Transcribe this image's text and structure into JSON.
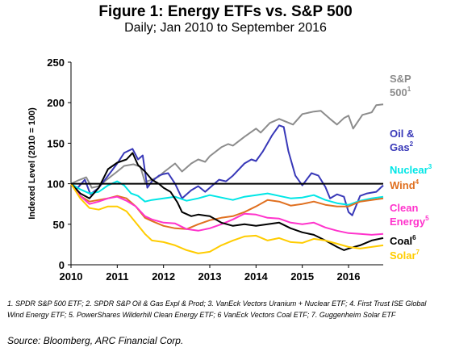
{
  "title": "Figure 1: Energy ETFs vs. S&P 500",
  "subtitle": "Daily; Jan 2010 to September 2016",
  "footnote": "1. SPDR S&P 500 ETF; 2. SPDR S&P Oil & Gas Expl & Prod; 3. VanEck Vectors Uranium + Nuclear ETF; 4. First Trust ISE Global Wind Energy ETF; 5. PowerShares Wilderhill Clean Energy ETF; 6 VanEck Vectors Coal ETF; 7. Guggenheim Solar ETF",
  "source": "Source: Bloomberg, ARC Financial Corp.",
  "chart_data": {
    "type": "line",
    "ylabel": "Indexed Level (2010 = 100)",
    "xlabel": "",
    "xlim": [
      2010.0,
      2016.75
    ],
    "ylim": [
      0,
      250
    ],
    "yticks": [
      0,
      50,
      100,
      150,
      200,
      250
    ],
    "xticks": [
      "2010",
      "2011",
      "2012",
      "2013",
      "2014",
      "2015",
      "2016"
    ],
    "reference_line": 100,
    "grid": false,
    "legend": "direct labels at right end of lines",
    "series": [
      {
        "name": "S&P 500",
        "superscript": "1",
        "color": "#8c8c8c",
        "points": [
          [
            2010.0,
            100
          ],
          [
            2010.15,
            104
          ],
          [
            2010.33,
            108
          ],
          [
            2010.45,
            95
          ],
          [
            2010.6,
            97
          ],
          [
            2010.75,
            104
          ],
          [
            2011.0,
            115
          ],
          [
            2011.15,
            122
          ],
          [
            2011.35,
            124
          ],
          [
            2011.5,
            121
          ],
          [
            2011.6,
            102
          ],
          [
            2011.75,
            105
          ],
          [
            2011.9,
            109
          ],
          [
            2012.0,
            114
          ],
          [
            2012.25,
            125
          ],
          [
            2012.4,
            115
          ],
          [
            2012.6,
            125
          ],
          [
            2012.75,
            130
          ],
          [
            2012.9,
            127
          ],
          [
            2013.0,
            134
          ],
          [
            2013.25,
            145
          ],
          [
            2013.4,
            149
          ],
          [
            2013.5,
            147
          ],
          [
            2013.75,
            158
          ],
          [
            2014.0,
            168
          ],
          [
            2014.1,
            163
          ],
          [
            2014.3,
            175
          ],
          [
            2014.5,
            180
          ],
          [
            2014.8,
            173
          ],
          [
            2015.0,
            186
          ],
          [
            2015.25,
            189
          ],
          [
            2015.4,
            190
          ],
          [
            2015.6,
            180
          ],
          [
            2015.75,
            173
          ],
          [
            2015.9,
            181
          ],
          [
            2016.0,
            184
          ],
          [
            2016.1,
            168
          ],
          [
            2016.3,
            185
          ],
          [
            2016.5,
            188
          ],
          [
            2016.6,
            197
          ],
          [
            2016.75,
            198
          ]
        ]
      },
      {
        "name": "Oil & Gas",
        "superscript": "2",
        "color": "#3838b8",
        "points": [
          [
            2010.0,
            100
          ],
          [
            2010.1,
            92
          ],
          [
            2010.3,
            105
          ],
          [
            2010.42,
            87
          ],
          [
            2010.6,
            95
          ],
          [
            2010.8,
            110
          ],
          [
            2011.0,
            125
          ],
          [
            2011.15,
            138
          ],
          [
            2011.33,
            143
          ],
          [
            2011.45,
            130
          ],
          [
            2011.55,
            135
          ],
          [
            2011.65,
            95
          ],
          [
            2011.75,
            103
          ],
          [
            2011.9,
            110
          ],
          [
            2012.0,
            112
          ],
          [
            2012.1,
            113
          ],
          [
            2012.25,
            100
          ],
          [
            2012.4,
            82
          ],
          [
            2012.6,
            92
          ],
          [
            2012.75,
            97
          ],
          [
            2012.9,
            90
          ],
          [
            2013.0,
            95
          ],
          [
            2013.2,
            105
          ],
          [
            2013.35,
            103
          ],
          [
            2013.5,
            110
          ],
          [
            2013.75,
            125
          ],
          [
            2013.9,
            130
          ],
          [
            2014.0,
            128
          ],
          [
            2014.15,
            140
          ],
          [
            2014.35,
            160
          ],
          [
            2014.5,
            172
          ],
          [
            2014.6,
            170
          ],
          [
            2014.7,
            140
          ],
          [
            2014.85,
            110
          ],
          [
            2015.0,
            98
          ],
          [
            2015.2,
            113
          ],
          [
            2015.35,
            110
          ],
          [
            2015.5,
            96
          ],
          [
            2015.6,
            82
          ],
          [
            2015.75,
            87
          ],
          [
            2015.9,
            84
          ],
          [
            2016.0,
            65
          ],
          [
            2016.08,
            61
          ],
          [
            2016.25,
            85
          ],
          [
            2016.4,
            88
          ],
          [
            2016.6,
            90
          ],
          [
            2016.75,
            98
          ]
        ]
      },
      {
        "name": "Nuclear",
        "superscript": "3",
        "color": "#00e6e6",
        "points": [
          [
            2010.0,
            100
          ],
          [
            2010.2,
            93
          ],
          [
            2010.4,
            88
          ],
          [
            2010.6,
            90
          ],
          [
            2010.8,
            98
          ],
          [
            2011.0,
            103
          ],
          [
            2011.15,
            98
          ],
          [
            2011.3,
            88
          ],
          [
            2011.45,
            85
          ],
          [
            2011.6,
            78
          ],
          [
            2011.75,
            80
          ],
          [
            2012.0,
            82
          ],
          [
            2012.25,
            84
          ],
          [
            2012.5,
            79
          ],
          [
            2012.75,
            82
          ],
          [
            2013.0,
            86
          ],
          [
            2013.25,
            83
          ],
          [
            2013.5,
            80
          ],
          [
            2013.75,
            84
          ],
          [
            2014.0,
            86
          ],
          [
            2014.25,
            88
          ],
          [
            2014.5,
            85
          ],
          [
            2014.75,
            82
          ],
          [
            2015.0,
            83
          ],
          [
            2015.25,
            86
          ],
          [
            2015.5,
            80
          ],
          [
            2015.75,
            76
          ],
          [
            2016.0,
            74
          ],
          [
            2016.25,
            79
          ],
          [
            2016.5,
            82
          ],
          [
            2016.75,
            84
          ]
        ]
      },
      {
        "name": "Wind",
        "superscript": "4",
        "color": "#e07020",
        "points": [
          [
            2010.0,
            100
          ],
          [
            2010.2,
            85
          ],
          [
            2010.4,
            78
          ],
          [
            2010.6,
            80
          ],
          [
            2010.8,
            82
          ],
          [
            2011.0,
            85
          ],
          [
            2011.2,
            82
          ],
          [
            2011.4,
            72
          ],
          [
            2011.6,
            58
          ],
          [
            2011.75,
            54
          ],
          [
            2012.0,
            48
          ],
          [
            2012.25,
            45
          ],
          [
            2012.5,
            44
          ],
          [
            2012.75,
            50
          ],
          [
            2013.0,
            55
          ],
          [
            2013.25,
            58
          ],
          [
            2013.5,
            60
          ],
          [
            2013.75,
            65
          ],
          [
            2014.0,
            72
          ],
          [
            2014.25,
            80
          ],
          [
            2014.5,
            78
          ],
          [
            2014.75,
            73
          ],
          [
            2015.0,
            75
          ],
          [
            2015.25,
            78
          ],
          [
            2015.5,
            74
          ],
          [
            2015.75,
            72
          ],
          [
            2016.0,
            72
          ],
          [
            2016.25,
            78
          ],
          [
            2016.5,
            80
          ],
          [
            2016.75,
            82
          ]
        ]
      },
      {
        "name": "Clean Energy",
        "superscript": "5",
        "color": "#ff33cc",
        "points": [
          [
            2010.0,
            100
          ],
          [
            2010.2,
            85
          ],
          [
            2010.4,
            75
          ],
          [
            2010.6,
            78
          ],
          [
            2010.8,
            82
          ],
          [
            2011.0,
            84
          ],
          [
            2011.2,
            79
          ],
          [
            2011.4,
            72
          ],
          [
            2011.6,
            60
          ],
          [
            2011.75,
            56
          ],
          [
            2012.0,
            52
          ],
          [
            2012.25,
            51
          ],
          [
            2012.5,
            44
          ],
          [
            2012.75,
            42
          ],
          [
            2013.0,
            45
          ],
          [
            2013.25,
            50
          ],
          [
            2013.5,
            56
          ],
          [
            2013.75,
            63
          ],
          [
            2014.0,
            62
          ],
          [
            2014.25,
            58
          ],
          [
            2014.5,
            57
          ],
          [
            2014.75,
            52
          ],
          [
            2015.0,
            50
          ],
          [
            2015.25,
            52
          ],
          [
            2015.5,
            46
          ],
          [
            2015.75,
            42
          ],
          [
            2016.0,
            39
          ],
          [
            2016.25,
            38
          ],
          [
            2016.5,
            37
          ],
          [
            2016.75,
            38
          ]
        ]
      },
      {
        "name": "Coal",
        "superscript": "6",
        "color": "#000000",
        "points": [
          [
            2010.0,
            100
          ],
          [
            2010.2,
            88
          ],
          [
            2010.4,
            82
          ],
          [
            2010.6,
            95
          ],
          [
            2010.8,
            118
          ],
          [
            2011.0,
            126
          ],
          [
            2011.2,
            130
          ],
          [
            2011.33,
            138
          ],
          [
            2011.45,
            123
          ],
          [
            2011.6,
            115
          ],
          [
            2011.75,
            105
          ],
          [
            2011.9,
            100
          ],
          [
            2012.0,
            95
          ],
          [
            2012.15,
            90
          ],
          [
            2012.3,
            77
          ],
          [
            2012.4,
            65
          ],
          [
            2012.6,
            60
          ],
          [
            2012.75,
            62
          ],
          [
            2013.0,
            60
          ],
          [
            2013.25,
            52
          ],
          [
            2013.5,
            48
          ],
          [
            2013.75,
            50
          ],
          [
            2014.0,
            48
          ],
          [
            2014.25,
            50
          ],
          [
            2014.5,
            52
          ],
          [
            2014.75,
            45
          ],
          [
            2015.0,
            40
          ],
          [
            2015.25,
            37
          ],
          [
            2015.5,
            30
          ],
          [
            2015.75,
            22
          ],
          [
            2015.9,
            18
          ],
          [
            2016.0,
            20
          ],
          [
            2016.25,
            24
          ],
          [
            2016.5,
            30
          ],
          [
            2016.75,
            33
          ]
        ]
      },
      {
        "name": "Solar",
        "superscript": "7",
        "color": "#ffcc00",
        "points": [
          [
            2010.0,
            100
          ],
          [
            2010.2,
            82
          ],
          [
            2010.4,
            70
          ],
          [
            2010.6,
            68
          ],
          [
            2010.8,
            72
          ],
          [
            2011.0,
            72
          ],
          [
            2011.2,
            66
          ],
          [
            2011.4,
            52
          ],
          [
            2011.6,
            38
          ],
          [
            2011.75,
            30
          ],
          [
            2012.0,
            28
          ],
          [
            2012.25,
            24
          ],
          [
            2012.5,
            18
          ],
          [
            2012.75,
            14
          ],
          [
            2013.0,
            16
          ],
          [
            2013.25,
            24
          ],
          [
            2013.5,
            30
          ],
          [
            2013.75,
            35
          ],
          [
            2014.0,
            36
          ],
          [
            2014.25,
            30
          ],
          [
            2014.5,
            33
          ],
          [
            2014.75,
            28
          ],
          [
            2015.0,
            27
          ],
          [
            2015.25,
            32
          ],
          [
            2015.5,
            30
          ],
          [
            2015.75,
            26
          ],
          [
            2016.0,
            22
          ],
          [
            2016.25,
            20
          ],
          [
            2016.5,
            22
          ],
          [
            2016.75,
            24
          ]
        ]
      }
    ],
    "labels": [
      {
        "series": "S&P 500",
        "lines": [
          "S&P",
          "500"
        ],
        "superscript": "1",
        "color": "#8c8c8c"
      },
      {
        "series": "Oil & Gas",
        "lines": [
          "Oil &",
          "Gas"
        ],
        "superscript": "2",
        "color": "#3838b8"
      },
      {
        "series": "Nuclear",
        "lines": [
          "Nuclear"
        ],
        "superscript": "3",
        "color": "#00e6e6"
      },
      {
        "series": "Wind",
        "lines": [
          "Wind"
        ],
        "superscript": "4",
        "color": "#e07020"
      },
      {
        "series": "Clean Energy",
        "lines": [
          "Clean",
          "Energy"
        ],
        "superscript": "5",
        "color": "#ff33cc"
      },
      {
        "series": "Coal",
        "lines": [
          "Coal"
        ],
        "superscript": "6",
        "color": "#000000"
      },
      {
        "series": "Solar",
        "lines": [
          "Solar"
        ],
        "superscript": "7",
        "color": "#ffcc00"
      }
    ]
  }
}
